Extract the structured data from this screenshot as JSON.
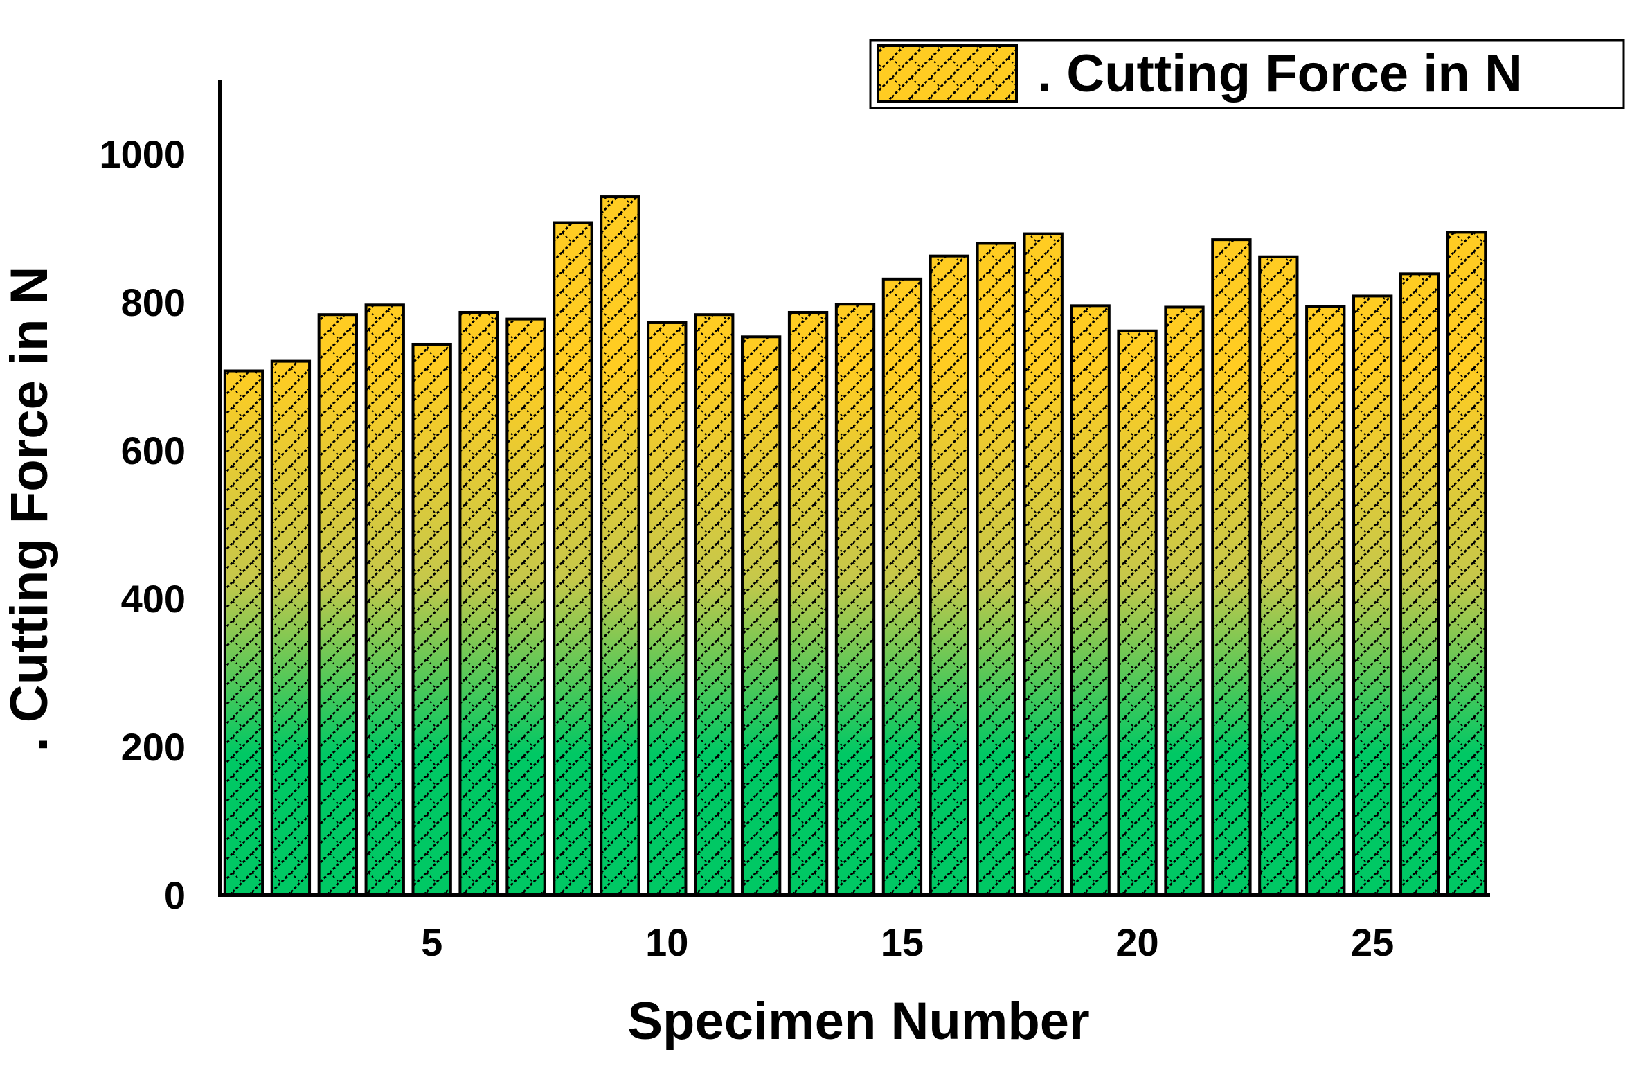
{
  "chart_data": {
    "type": "bar",
    "x": [
      1,
      2,
      3,
      4,
      5,
      6,
      7,
      8,
      9,
      10,
      11,
      12,
      13,
      14,
      15,
      16,
      17,
      18,
      19,
      20,
      21,
      22,
      23,
      24,
      25,
      26,
      27
    ],
    "series": [
      {
        "name": ". Cutting Force in N",
        "values": [
          707,
          720,
          783,
          796,
          743,
          786,
          777,
          907,
          942,
          772,
          783,
          753,
          786,
          797,
          831,
          862,
          879,
          892,
          795,
          761,
          793,
          884,
          861,
          794,
          808,
          838,
          894
        ]
      }
    ],
    "xlabel": "Specimen Number",
    "ylabel": ". Cutting Force in N",
    "xticks": [
      "5",
      "10",
      "15",
      "20",
      "25"
    ],
    "xtick_values": [
      5,
      10,
      15,
      20,
      25
    ],
    "yticks": [
      "0",
      "200",
      "400",
      "600",
      "800",
      "1000"
    ],
    "ytick_values": [
      0,
      200,
      400,
      600,
      800,
      1000
    ],
    "ylim": [
      0,
      1100
    ],
    "xlim": [
      0.5,
      27.5
    ],
    "grid": false,
    "legend_position": "top-right",
    "colors": {
      "bar_top": "#ffcc22",
      "bar_mid": "#c6c84a",
      "bar_bottom": "#00c864",
      "outline": "#000000",
      "hatch": "#000000"
    }
  }
}
